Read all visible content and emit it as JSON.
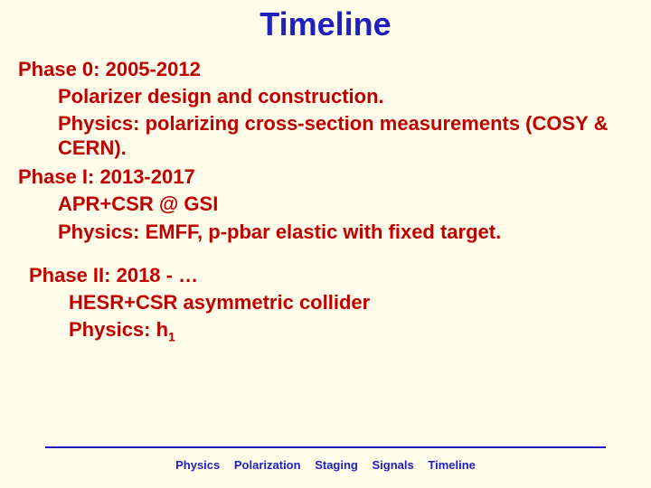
{
  "title": "Timeline",
  "title_color": "#2020c0",
  "title_fontsize": 36,
  "body_color": "#c00000",
  "background_color": "#fffde9",
  "phase0": {
    "head": "Phase 0: 2005-2012",
    "l1": "Polarizer design and construction.",
    "l2": "Physics: polarizing cross-section measurements (COSY & CERN)."
  },
  "phase1": {
    "head": "Phase I: 2013-2017",
    "l1": "APR+CSR @ GSI",
    "l2": "Physics: EMFF, p-pbar elastic with fixed target."
  },
  "phase2": {
    "head": "Phase II: 2018 - …",
    "l1": "HESR+CSR asymmetric collider",
    "l2_prefix": "Physics: h",
    "l2_sub": "1"
  },
  "footer": {
    "items": [
      "Physics",
      "Polarization",
      "Staging",
      "Signals",
      "Timeline"
    ],
    "color": "#2020c0",
    "line_color": "#2020c0"
  }
}
